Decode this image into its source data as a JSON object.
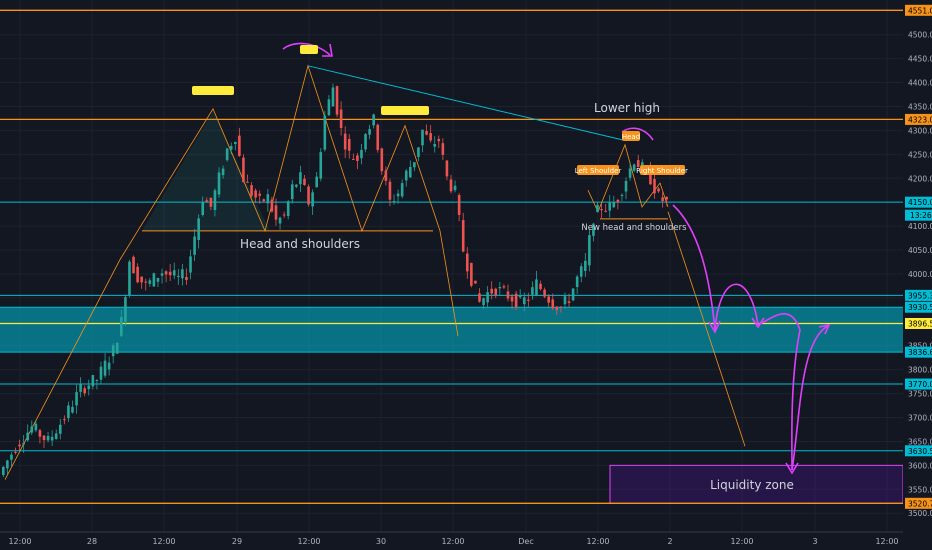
{
  "colors": {
    "background": "#131722",
    "grid": "#1e222d",
    "up": "#26a69a",
    "down": "#ef5350",
    "orange": "#f7931a",
    "teal": "#00bcd4",
    "yellow": "#ffeb3b",
    "magenta": "#e040fb",
    "axis_text": "#b2b5be"
  },
  "chart_data": {
    "type": "candlestick",
    "title": "",
    "ylim": [
      3490,
      4560
    ],
    "y_ticks": [
      3500,
      3550,
      3600,
      3650,
      3700,
      3750,
      3800,
      3850,
      3900,
      3950,
      4000,
      4050,
      4100,
      4150,
      4200,
      4250,
      4300,
      4350,
      4400,
      4450,
      4500
    ],
    "x_ticks": [
      "12:00",
      "28",
      "12:00",
      "29",
      "12:00",
      "30",
      "12:00",
      "Dec",
      "12:00",
      "2",
      "12:00",
      "3",
      "12:00"
    ],
    "price_levels": [
      {
        "label": "4551.0",
        "value": 4551.0,
        "color": "orange"
      },
      {
        "label": "4323.0",
        "value": 4323.0,
        "color": "orange"
      },
      {
        "label": "4150.0",
        "value": 4150.0,
        "color": "teal"
      },
      {
        "label": "3955.3",
        "value": 3955.3,
        "color": "teal"
      },
      {
        "label": "3930.5",
        "value": 3930.5,
        "color": "teal"
      },
      {
        "label": "3896.5",
        "value": 3896.5,
        "color": "yellow"
      },
      {
        "label": "3836.6",
        "value": 3836.6,
        "color": "teal"
      },
      {
        "label": "3770.0",
        "value": 3770.0,
        "color": "teal"
      },
      {
        "label": "3630.5",
        "value": 3630.5,
        "color": "teal"
      },
      {
        "label": "3520.7",
        "value": 3520.7,
        "color": "orange"
      }
    ],
    "last_price_label": "4150.0",
    "countdown_label": "13:26",
    "price_path": [
      [
        0,
        3580
      ],
      [
        4,
        3640
      ],
      [
        8,
        3680
      ],
      [
        12,
        3650
      ],
      [
        16,
        3700
      ],
      [
        20,
        3760
      ],
      [
        24,
        3780
      ],
      [
        28,
        3840
      ],
      [
        30,
        3900
      ],
      [
        32,
        4030
      ],
      [
        34,
        3995
      ],
      [
        36,
        3975
      ],
      [
        40,
        4005
      ],
      [
        44,
        3990
      ],
      [
        46,
        4000
      ],
      [
        48,
        4080
      ],
      [
        50,
        4160
      ],
      [
        52,
        4140
      ],
      [
        54,
        4200
      ],
      [
        56,
        4260
      ],
      [
        58,
        4290
      ],
      [
        60,
        4200
      ],
      [
        62,
        4170
      ],
      [
        64,
        4150
      ],
      [
        66,
        4160
      ],
      [
        68,
        4110
      ],
      [
        70,
        4120
      ],
      [
        72,
        4180
      ],
      [
        74,
        4200
      ],
      [
        76,
        4150
      ],
      [
        78,
        4200
      ],
      [
        80,
        4330
      ],
      [
        82,
        4390
      ],
      [
        84,
        4300
      ],
      [
        86,
        4250
      ],
      [
        88,
        4240
      ],
      [
        90,
        4300
      ],
      [
        92,
        4320
      ],
      [
        94,
        4220
      ],
      [
        96,
        4150
      ],
      [
        98,
        4170
      ],
      [
        100,
        4210
      ],
      [
        102,
        4240
      ],
      [
        104,
        4300
      ],
      [
        106,
        4270
      ],
      [
        108,
        4280
      ],
      [
        110,
        4200
      ],
      [
        112,
        4170
      ],
      [
        114,
        4050
      ],
      [
        116,
        3990
      ],
      [
        118,
        3940
      ],
      [
        120,
        3960
      ],
      [
        122,
        3970
      ],
      [
        124,
        3960
      ],
      [
        126,
        3950
      ],
      [
        128,
        3940
      ],
      [
        130,
        3950
      ],
      [
        132,
        3980
      ],
      [
        134,
        3960
      ],
      [
        136,
        3940
      ],
      [
        138,
        3930
      ],
      [
        140,
        3950
      ],
      [
        142,
        3990
      ],
      [
        144,
        4020
      ],
      [
        146,
        4120
      ],
      [
        148,
        4140
      ],
      [
        150,
        4140
      ],
      [
        152,
        4160
      ],
      [
        154,
        4200
      ],
      [
        156,
        4240
      ],
      [
        158,
        4220
      ],
      [
        160,
        4200
      ],
      [
        162,
        4160
      ],
      [
        164,
        4150
      ]
    ],
    "patterns": [
      {
        "name": "Head and shoulders",
        "label": "Head and shoulders"
      },
      {
        "name": "New head and shoulders",
        "label": "New head and shoulders"
      }
    ],
    "annotations": {
      "lower_high": "Lower high",
      "liquidity_zone": "Liquidity zone",
      "left_shoulder": "Left Shoulder",
      "head": "Head",
      "right_shoulder": "Right Shoulder"
    }
  }
}
